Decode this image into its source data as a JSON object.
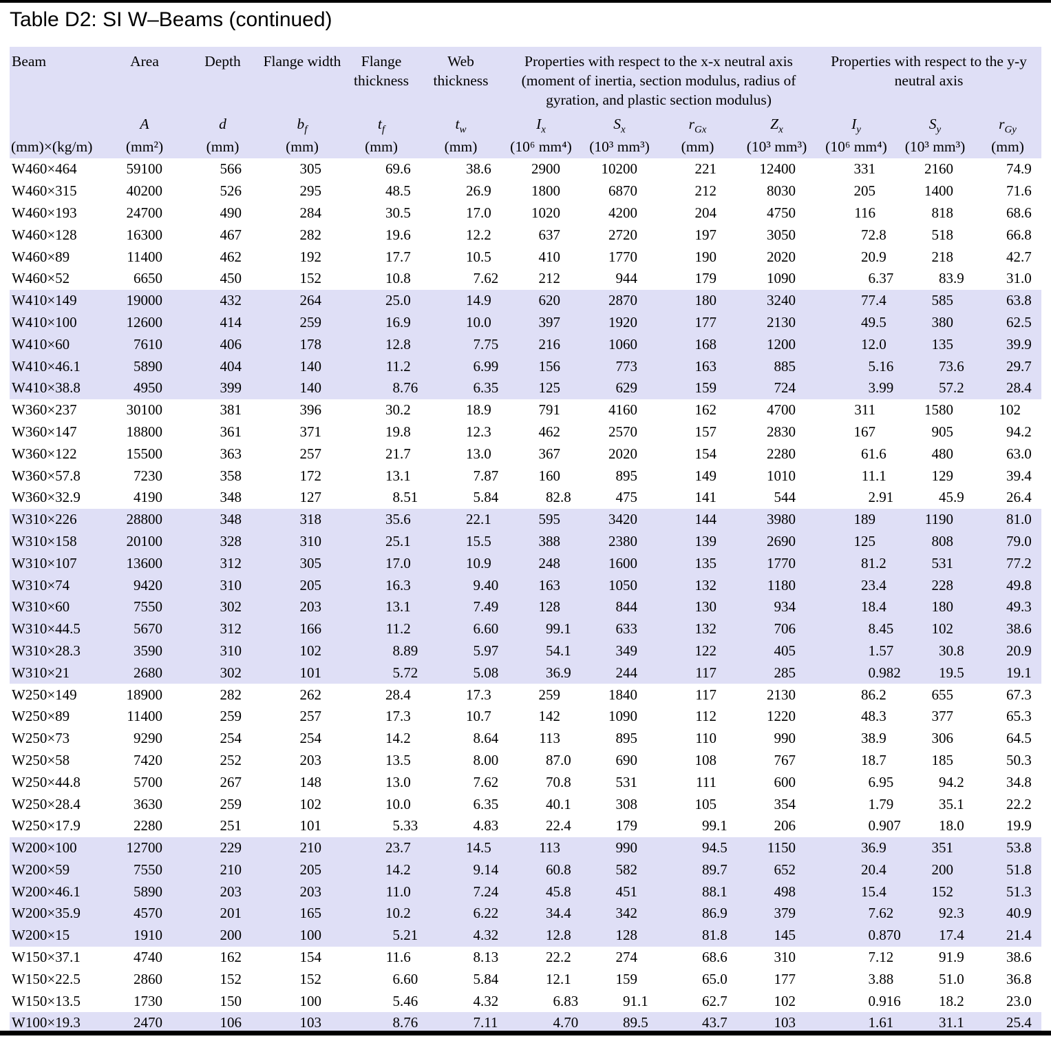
{
  "title": "Table D2: SI W–Beams (continued)",
  "colors": {
    "header_band": "#dfdff6",
    "stripe": "#dfdff6",
    "rule": "#000000"
  },
  "table": {
    "header": {
      "beam": "Beam",
      "area": "Area",
      "depth": "Depth",
      "flange_width": "Flange width",
      "flange_thickness": "Flange thickness",
      "web_thickness": "Web thickness",
      "xx_group": "Properties with respect to the x-x neutral axis (moment of inertia, section modulus, radius of gyration, and plastic section modulus)",
      "yy_group": "Properties with respect to the y-y neutral axis",
      "symbols": [
        {
          "b": "A",
          "s": ""
        },
        {
          "b": "d",
          "s": ""
        },
        {
          "b": "b",
          "s": "f"
        },
        {
          "b": "t",
          "s": "f"
        },
        {
          "b": "t",
          "s": "w"
        },
        {
          "b": "I",
          "s": "x"
        },
        {
          "b": "S",
          "s": "x"
        },
        {
          "b": "r",
          "s": "Gx"
        },
        {
          "b": "Z",
          "s": "x"
        },
        {
          "b": "I",
          "s": "y"
        },
        {
          "b": "S",
          "s": "y"
        },
        {
          "b": "r",
          "s": "Gy"
        }
      ],
      "units": [
        "(mm)×(kg/m)",
        "(mm²)",
        "(mm)",
        "(mm)",
        "(mm)",
        "(mm)",
        "(10⁶ mm⁴)",
        "(10³ mm³)",
        "(mm)",
        "(10³ mm³)",
        "(10⁶ mm⁴)",
        "(10³ mm³)",
        "(mm)"
      ]
    },
    "groups": [
      {
        "shaded": false,
        "rows": [
          {
            "beam": "W460×464",
            "values": [
              "59100",
              "566",
              "305",
              "69.6",
              "38.6",
              "2900",
              "10200",
              "221",
              "12400",
              "331",
              "2160",
              "74.9"
            ]
          },
          {
            "beam": "W460×315",
            "values": [
              "40200",
              "526",
              "295",
              "48.5",
              "26.9",
              "1800",
              "6870",
              "212",
              "8030",
              "205",
              "1400",
              "71.6"
            ]
          },
          {
            "beam": "W460×193",
            "values": [
              "24700",
              "490",
              "284",
              "30.5",
              "17.0",
              "1020",
              "4200",
              "204",
              "4750",
              "116",
              "818",
              "68.6"
            ]
          },
          {
            "beam": "W460×128",
            "values": [
              "16300",
              "467",
              "282",
              "19.6",
              "12.2",
              "637",
              "2720",
              "197",
              "3050",
              "72.8",
              "518",
              "66.8"
            ]
          },
          {
            "beam": "W460×89",
            "values": [
              "11400",
              "462",
              "192",
              "17.7",
              "10.5",
              "410",
              "1770",
              "190",
              "2020",
              "20.9",
              "218",
              "42.7"
            ]
          },
          {
            "beam": "W460×52",
            "values": [
              "6650",
              "450",
              "152",
              "10.8",
              "7.62",
              "212",
              "944",
              "179",
              "1090",
              "6.37",
              "83.9",
              "31.0"
            ]
          }
        ]
      },
      {
        "shaded": true,
        "rows": [
          {
            "beam": "W410×149",
            "values": [
              "19000",
              "432",
              "264",
              "25.0",
              "14.9",
              "620",
              "2870",
              "180",
              "3240",
              "77.4",
              "585",
              "63.8"
            ]
          },
          {
            "beam": "W410×100",
            "values": [
              "12600",
              "414",
              "259",
              "16.9",
              "10.0",
              "397",
              "1920",
              "177",
              "2130",
              "49.5",
              "380",
              "62.5"
            ]
          },
          {
            "beam": "W410×60",
            "values": [
              "7610",
              "406",
              "178",
              "12.8",
              "7.75",
              "216",
              "1060",
              "168",
              "1200",
              "12.0",
              "135",
              "39.9"
            ]
          },
          {
            "beam": "W410×46.1",
            "values": [
              "5890",
              "404",
              "140",
              "11.2",
              "6.99",
              "156",
              "773",
              "163",
              "885",
              "5.16",
              "73.6",
              "29.7"
            ]
          },
          {
            "beam": "W410×38.8",
            "values": [
              "4950",
              "399",
              "140",
              "8.76",
              "6.35",
              "125",
              "629",
              "159",
              "724",
              "3.99",
              "57.2",
              "28.4"
            ]
          }
        ]
      },
      {
        "shaded": false,
        "rows": [
          {
            "beam": "W360×237",
            "values": [
              "30100",
              "381",
              "396",
              "30.2",
              "18.9",
              "791",
              "4160",
              "162",
              "4700",
              "311",
              "1580",
              "102"
            ]
          },
          {
            "beam": "W360×147",
            "values": [
              "18800",
              "361",
              "371",
              "19.8",
              "12.3",
              "462",
              "2570",
              "157",
              "2830",
              "167",
              "905",
              "94.2"
            ]
          },
          {
            "beam": "W360×122",
            "values": [
              "15500",
              "363",
              "257",
              "21.7",
              "13.0",
              "367",
              "2020",
              "154",
              "2280",
              "61.6",
              "480",
              "63.0"
            ]
          },
          {
            "beam": "W360×57.8",
            "values": [
              "7230",
              "358",
              "172",
              "13.1",
              "7.87",
              "160",
              "895",
              "149",
              "1010",
              "11.1",
              "129",
              "39.4"
            ]
          },
          {
            "beam": "W360×32.9",
            "values": [
              "4190",
              "348",
              "127",
              "8.51",
              "5.84",
              "82.8",
              "475",
              "141",
              "544",
              "2.91",
              "45.9",
              "26.4"
            ]
          }
        ]
      },
      {
        "shaded": true,
        "rows": [
          {
            "beam": "W310×226",
            "values": [
              "28800",
              "348",
              "318",
              "35.6",
              "22.1",
              "595",
              "3420",
              "144",
              "3980",
              "189",
              "1190",
              "81.0"
            ]
          },
          {
            "beam": "W310×158",
            "values": [
              "20100",
              "328",
              "310",
              "25.1",
              "15.5",
              "388",
              "2380",
              "139",
              "2690",
              "125",
              "808",
              "79.0"
            ]
          },
          {
            "beam": "W310×107",
            "values": [
              "13600",
              "312",
              "305",
              "17.0",
              "10.9",
              "248",
              "1600",
              "135",
              "1770",
              "81.2",
              "531",
              "77.2"
            ]
          },
          {
            "beam": "W310×74",
            "values": [
              "9420",
              "310",
              "205",
              "16.3",
              "9.40",
              "163",
              "1050",
              "132",
              "1180",
              "23.4",
              "228",
              "49.8"
            ]
          },
          {
            "beam": "W310×60",
            "values": [
              "7550",
              "302",
              "203",
              "13.1",
              "7.49",
              "128",
              "844",
              "130",
              "934",
              "18.4",
              "180",
              "49.3"
            ]
          },
          {
            "beam": "W310×44.5",
            "values": [
              "5670",
              "312",
              "166",
              "11.2",
              "6.60",
              "99.1",
              "633",
              "132",
              "706",
              "8.45",
              "102",
              "38.6"
            ]
          },
          {
            "beam": "W310×28.3",
            "values": [
              "3590",
              "310",
              "102",
              "8.89",
              "5.97",
              "54.1",
              "349",
              "122",
              "405",
              "1.57",
              "30.8",
              "20.9"
            ]
          },
          {
            "beam": "W310×21",
            "values": [
              "2680",
              "302",
              "101",
              "5.72",
              "5.08",
              "36.9",
              "244",
              "117",
              "285",
              "0.982",
              "19.5",
              "19.1"
            ]
          }
        ]
      },
      {
        "shaded": false,
        "rows": [
          {
            "beam": "W250×149",
            "values": [
              "18900",
              "282",
              "262",
              "28.4",
              "17.3",
              "259",
              "1840",
              "117",
              "2130",
              "86.2",
              "655",
              "67.3"
            ]
          },
          {
            "beam": "W250×89",
            "values": [
              "11400",
              "259",
              "257",
              "17.3",
              "10.7",
              "142",
              "1090",
              "112",
              "1220",
              "48.3",
              "377",
              "65.3"
            ]
          },
          {
            "beam": "W250×73",
            "values": [
              "9290",
              "254",
              "254",
              "14.2",
              "8.64",
              "113",
              "895",
              "110",
              "990",
              "38.9",
              "306",
              "64.5"
            ]
          },
          {
            "beam": "W250×58",
            "values": [
              "7420",
              "252",
              "203",
              "13.5",
              "8.00",
              "87.0",
              "690",
              "108",
              "767",
              "18.7",
              "185",
              "50.3"
            ]
          },
          {
            "beam": "W250×44.8",
            "values": [
              "5700",
              "267",
              "148",
              "13.0",
              "7.62",
              "70.8",
              "531",
              "111",
              "600",
              "6.95",
              "94.2",
              "34.8"
            ]
          },
          {
            "beam": "W250×28.4",
            "values": [
              "3630",
              "259",
              "102",
              "10.0",
              "6.35",
              "40.1",
              "308",
              "105",
              "354",
              "1.79",
              "35.1",
              "22.2"
            ]
          },
          {
            "beam": "W250×17.9",
            "values": [
              "2280",
              "251",
              "101",
              "5.33",
              "4.83",
              "22.4",
              "179",
              "99.1",
              "206",
              "0.907",
              "18.0",
              "19.9"
            ]
          }
        ]
      },
      {
        "shaded": true,
        "rows": [
          {
            "beam": "W200×100",
            "values": [
              "12700",
              "229",
              "210",
              "23.7",
              "14.5",
              "113",
              "990",
              "94.5",
              "1150",
              "36.9",
              "351",
              "53.8"
            ]
          },
          {
            "beam": "W200×59",
            "values": [
              "7550",
              "210",
              "205",
              "14.2",
              "9.14",
              "60.8",
              "582",
              "89.7",
              "652",
              "20.4",
              "200",
              "51.8"
            ]
          },
          {
            "beam": "W200×46.1",
            "values": [
              "5890",
              "203",
              "203",
              "11.0",
              "7.24",
              "45.8",
              "451",
              "88.1",
              "498",
              "15.4",
              "152",
              "51.3"
            ]
          },
          {
            "beam": "W200×35.9",
            "values": [
              "4570",
              "201",
              "165",
              "10.2",
              "6.22",
              "34.4",
              "342",
              "86.9",
              "379",
              "7.62",
              "92.3",
              "40.9"
            ]
          },
          {
            "beam": "W200×15",
            "values": [
              "1910",
              "200",
              "100",
              "5.21",
              "4.32",
              "12.8",
              "128",
              "81.8",
              "145",
              "0.870",
              "17.4",
              "21.4"
            ]
          }
        ]
      },
      {
        "shaded": false,
        "rows": [
          {
            "beam": "W150×37.1",
            "values": [
              "4740",
              "162",
              "154",
              "11.6",
              "8.13",
              "22.2",
              "274",
              "68.6",
              "310",
              "7.12",
              "91.9",
              "38.6"
            ]
          },
          {
            "beam": "W150×22.5",
            "values": [
              "2860",
              "152",
              "152",
              "6.60",
              "5.84",
              "12.1",
              "159",
              "65.0",
              "177",
              "3.88",
              "51.0",
              "36.8"
            ]
          },
          {
            "beam": "W150×13.5",
            "values": [
              "1730",
              "150",
              "100",
              "5.46",
              "4.32",
              "6.83",
              "91.1",
              "62.7",
              "102",
              "0.916",
              "18.2",
              "23.0"
            ]
          }
        ]
      },
      {
        "shaded": true,
        "rows": [
          {
            "beam": "W100×19.3",
            "values": [
              "2470",
              "106",
              "103",
              "8.76",
              "7.11",
              "4.70",
              "89.5",
              "43.7",
              "103",
              "1.61",
              "31.1",
              "25.4"
            ]
          }
        ]
      }
    ]
  }
}
